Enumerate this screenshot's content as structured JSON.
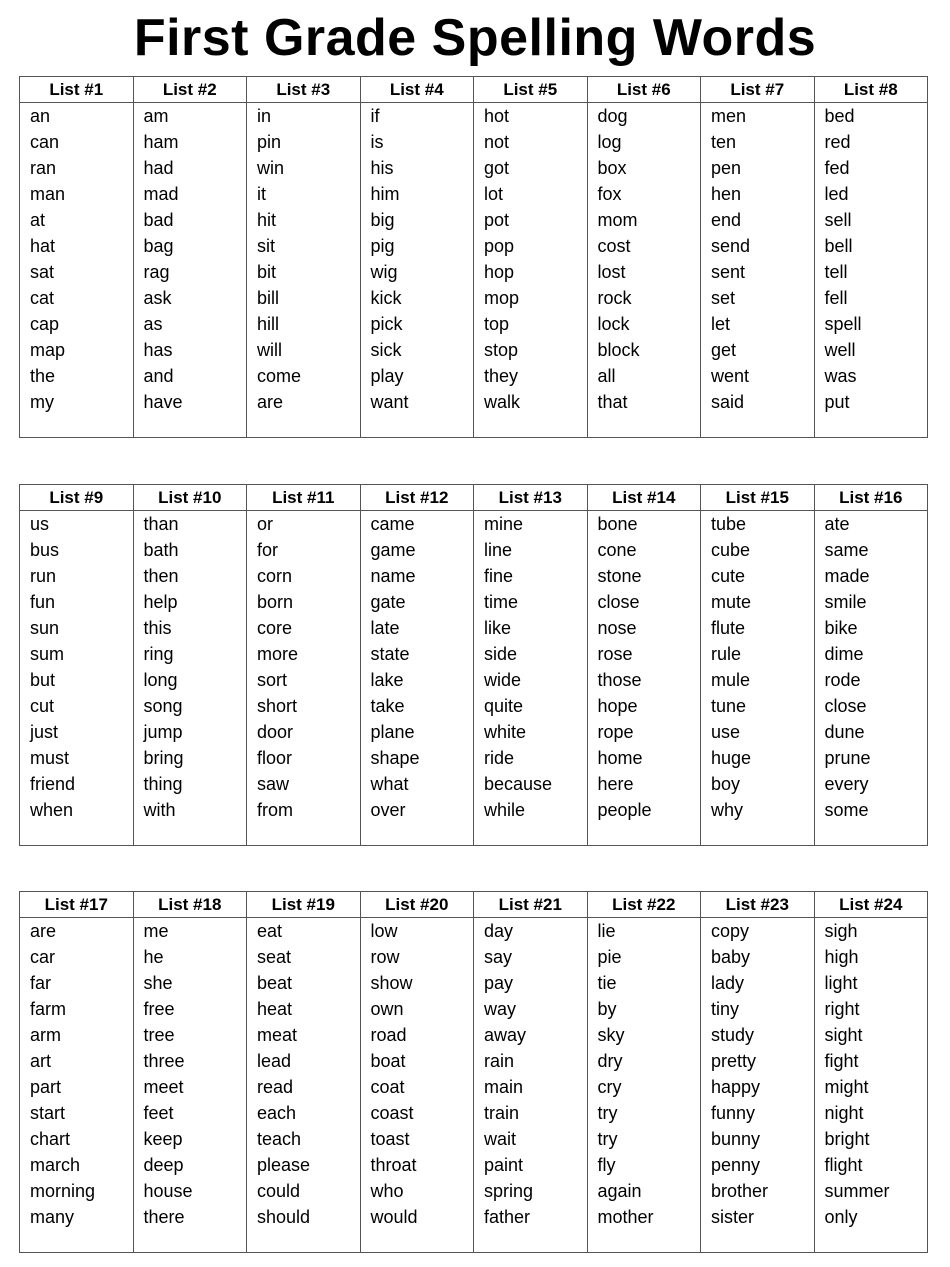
{
  "title": "First Grade Spelling Words",
  "tables": [
    [
      {
        "header": "List #1",
        "words": [
          "an",
          "can",
          "ran",
          "man",
          "at",
          "hat",
          "sat",
          "cat",
          "cap",
          "map",
          "the",
          "my"
        ]
      },
      {
        "header": "List #2",
        "words": [
          "am",
          "ham",
          "had",
          "mad",
          "bad",
          "bag",
          "rag",
          "ask",
          "as",
          "has",
          "and",
          "have"
        ]
      },
      {
        "header": "List #3",
        "words": [
          "in",
          "pin",
          "win",
          "it",
          "hit",
          "sit",
          "bit",
          "bill",
          "hill",
          "will",
          "come",
          "are"
        ]
      },
      {
        "header": "List #4",
        "words": [
          "if",
          "is",
          "his",
          "him",
          "big",
          "pig",
          "wig",
          "kick",
          "pick",
          "sick",
          "play",
          "want"
        ]
      },
      {
        "header": "List #5",
        "words": [
          "hot",
          "not",
          "got",
          "lot",
          "pot",
          "pop",
          "hop",
          "mop",
          "top",
          "stop",
          "they",
          "walk"
        ]
      },
      {
        "header": "List #6",
        "words": [
          "dog",
          "log",
          "box",
          "fox",
          "mom",
          "cost",
          "lost",
          "rock",
          "lock",
          "block",
          "all",
          "that"
        ]
      },
      {
        "header": "List #7",
        "words": [
          "men",
          "ten",
          "pen",
          "hen",
          "end",
          "send",
          "sent",
          "set",
          "let",
          "get",
          "went",
          "said"
        ]
      },
      {
        "header": "List #8",
        "words": [
          "bed",
          "red",
          "fed",
          "led",
          "sell",
          "bell",
          "tell",
          "fell",
          "spell",
          "well",
          "was",
          "put"
        ]
      }
    ],
    [
      {
        "header": "List #9",
        "words": [
          "us",
          "bus",
          "run",
          "fun",
          "sun",
          "sum",
          "but",
          "cut",
          "just",
          "must",
          "friend",
          "when"
        ]
      },
      {
        "header": "List #10",
        "words": [
          "than",
          "bath",
          "then",
          "help",
          "this",
          "ring",
          "long",
          "song",
          "jump",
          "bring",
          "thing",
          "with"
        ]
      },
      {
        "header": "List #11",
        "words": [
          "or",
          "for",
          "corn",
          "born",
          "core",
          "more",
          "sort",
          "short",
          "door",
          "floor",
          "saw",
          "from"
        ]
      },
      {
        "header": "List #12",
        "words": [
          "came",
          "game",
          "name",
          "gate",
          "late",
          "state",
          "lake",
          "take",
          "plane",
          "shape",
          "what",
          "over"
        ]
      },
      {
        "header": "List #13",
        "words": [
          "mine",
          "line",
          "fine",
          "time",
          "like",
          "side",
          "wide",
          "quite",
          "white",
          "ride",
          "because",
          "while"
        ]
      },
      {
        "header": "List #14",
        "words": [
          "bone",
          "cone",
          "stone",
          "close",
          "nose",
          "rose",
          "those",
          "hope",
          "rope",
          "home",
          "here",
          "people"
        ]
      },
      {
        "header": "List #15",
        "words": [
          "tube",
          "cube",
          "cute",
          "mute",
          "flute",
          "rule",
          "mule",
          "tune",
          "use",
          "huge",
          "boy",
          "why"
        ]
      },
      {
        "header": "List #16",
        "words": [
          "ate",
          "same",
          "made",
          "smile",
          "bike",
          "dime",
          "rode",
          "close",
          "dune",
          "prune",
          "every",
          "some"
        ]
      }
    ],
    [
      {
        "header": "List #17",
        "words": [
          "are",
          "car",
          "far",
          "farm",
          "arm",
          "art",
          "part",
          "start",
          "chart",
          "march",
          "morning",
          "many"
        ]
      },
      {
        "header": "List #18",
        "words": [
          "me",
          "he",
          "she",
          "free",
          "tree",
          "three",
          "meet",
          "feet",
          "keep",
          "deep",
          "house",
          "there"
        ]
      },
      {
        "header": "List #19",
        "words": [
          "eat",
          "seat",
          "beat",
          "heat",
          "meat",
          "lead",
          "read",
          "each",
          "teach",
          "please",
          "could",
          "should"
        ]
      },
      {
        "header": "List #20",
        "words": [
          "low",
          "row",
          "show",
          "own",
          "road",
          "boat",
          "coat",
          "coast",
          "toast",
          "throat",
          "who",
          "would"
        ]
      },
      {
        "header": "List #21",
        "words": [
          "day",
          "say",
          "pay",
          "way",
          "away",
          "rain",
          "main",
          "train",
          "wait",
          "paint",
          "spring",
          "father"
        ]
      },
      {
        "header": "List #22",
        "words": [
          "lie",
          "pie",
          "tie",
          "by",
          "sky",
          "dry",
          "cry",
          "try",
          "try",
          "fly",
          "again",
          "mother"
        ]
      },
      {
        "header": "List #23",
        "words": [
          "copy",
          "baby",
          "lady",
          "tiny",
          "study",
          "pretty",
          "happy",
          "funny",
          "bunny",
          "penny",
          "brother",
          "sister"
        ]
      },
      {
        "header": "List #24",
        "words": [
          "sigh",
          "high",
          "light",
          "right",
          "sight",
          "fight",
          "might",
          "night",
          "bright",
          "flight",
          "summer",
          "only"
        ]
      }
    ]
  ]
}
